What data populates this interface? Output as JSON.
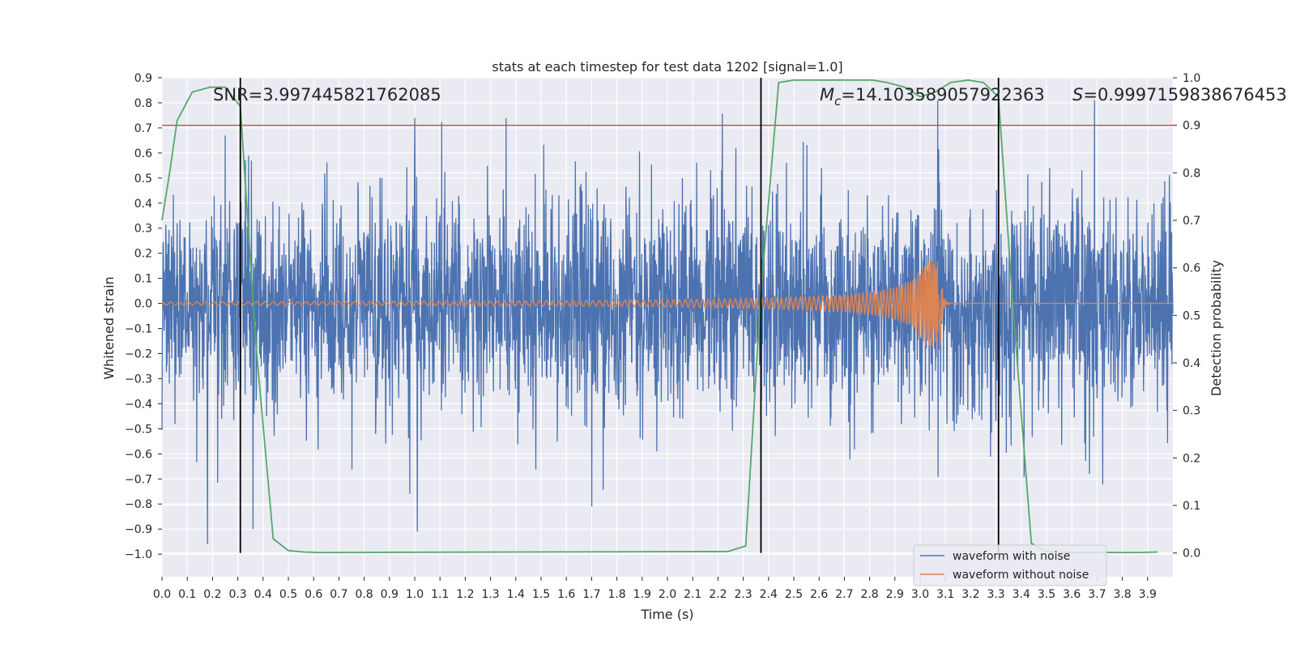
{
  "chart_data": {
    "type": "line",
    "title": "stats at each timestep for test data 1202 [signal=1.0]",
    "xlabel": "Time (s)",
    "ylabel": "Whitened strain",
    "y2label": "Detection probability",
    "xlim": [
      0.0,
      4.0
    ],
    "ylim": [
      -1.09,
      0.9
    ],
    "y2lim": [
      -0.05,
      1.0
    ],
    "x_ticks": [
      "0.0",
      "0.1",
      "0.2",
      "0.3",
      "0.4",
      "0.5",
      "0.6",
      "0.7",
      "0.8",
      "0.9",
      "1.0",
      "1.1",
      "1.2",
      "1.3",
      "1.4",
      "1.5",
      "1.6",
      "1.7",
      "1.8",
      "1.9",
      "2.0",
      "2.1",
      "2.2",
      "2.3",
      "2.4",
      "2.5",
      "2.6",
      "2.7",
      "2.8",
      "2.9",
      "3.0",
      "3.1",
      "3.2",
      "3.3",
      "3.4",
      "3.5",
      "3.6",
      "3.7",
      "3.8",
      "3.9"
    ],
    "y_ticks": [
      "0.9",
      "0.8",
      "0.7",
      "0.6",
      "0.5",
      "0.4",
      "0.3",
      "0.2",
      "0.1",
      "0.0",
      "−0.1",
      "−0.2",
      "−0.3",
      "−0.4",
      "−0.5",
      "−0.6",
      "−0.7",
      "−0.8",
      "−0.9",
      "−1.0"
    ],
    "y2_ticks": [
      "0.0",
      "0.1",
      "0.2",
      "0.3",
      "0.4",
      "0.5",
      "0.6",
      "0.7",
      "0.8",
      "0.9",
      "1.0"
    ],
    "grid": true,
    "legend_position": "bottom-right",
    "annotations": {
      "snr": "SNR=3.997445821762085",
      "mc_symbol": "M",
      "mc_sub": "c",
      "mc_value": "=14.103589057922363",
      "s_symbol": "S",
      "s_value": "=0.9997159838676453"
    },
    "threshold": {
      "y2": 0.9,
      "color": "#c44e52"
    },
    "vlines": [
      {
        "x": 0.31,
        "y2_range": [
          0.0,
          1.0
        ]
      },
      {
        "x": 2.37,
        "y2_range": [
          0.0,
          1.0
        ]
      },
      {
        "x": 3.31,
        "y2_range": [
          0.0,
          1.0
        ]
      }
    ],
    "series": [
      {
        "name": "waveform with noise",
        "color": "#4c72b0",
        "kind": "noise",
        "typical_amplitude": 0.25,
        "peaks": [
          {
            "x": 0.18,
            "y": -0.96
          },
          {
            "x": 0.25,
            "y": 0.67
          },
          {
            "x": 0.36,
            "y": -0.9
          },
          {
            "x": 0.98,
            "y": -0.76
          },
          {
            "x": 1.0,
            "y": 0.74
          },
          {
            "x": 1.01,
            "y": -0.91
          },
          {
            "x": 1.7,
            "y": -0.81
          },
          {
            "x": 3.07,
            "y": 0.81
          },
          {
            "x": 3.69,
            "y": 0.81
          },
          {
            "x": 3.67,
            "y": -0.68
          }
        ]
      },
      {
        "name": "waveform without noise",
        "color": "#dd8452",
        "kind": "chirp",
        "x_start": 0.0,
        "x_merger": 3.08,
        "x_end": 4.0,
        "amplitude_start": 0.006,
        "amplitude_peak": 0.17
      },
      {
        "name": "Detection probability",
        "color": "#55a868",
        "axis": "right",
        "x": [
          0.0,
          0.03,
          0.06,
          0.12,
          0.19,
          0.25,
          0.31,
          0.37,
          0.44,
          0.5,
          0.56,
          0.62,
          2.24,
          2.31,
          2.37,
          2.44,
          2.5,
          2.56,
          2.62,
          2.69,
          2.75,
          2.81,
          2.87,
          2.94,
          3.0,
          3.06,
          3.12,
          3.19,
          3.25,
          3.31,
          3.37,
          3.44,
          3.5,
          3.56,
          3.62,
          3.69,
          3.75,
          3.81,
          3.87,
          3.94
        ],
        "y": [
          0.7,
          0.8,
          0.91,
          0.97,
          0.98,
          0.98,
          0.94,
          0.45,
          0.03,
          0.005,
          0.002,
          0.001,
          0.003,
          0.015,
          0.55,
          0.99,
          0.995,
          0.995,
          0.995,
          0.995,
          0.995,
          0.995,
          0.99,
          0.98,
          0.96,
          0.97,
          0.99,
          0.995,
          0.99,
          0.96,
          0.5,
          0.02,
          0.003,
          0.001,
          0.001,
          0.001,
          0.001,
          0.001,
          0.001,
          0.002
        ]
      }
    ]
  }
}
